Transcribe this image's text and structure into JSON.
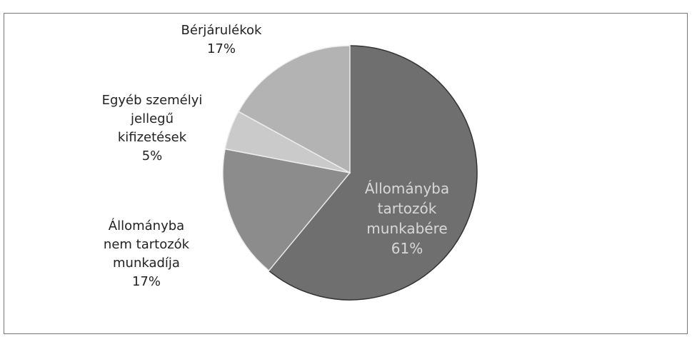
{
  "chart_data": {
    "type": "pie",
    "categories": [
      "Állományba\ntartozók\nmunkabére",
      "Állományba\nnem tartozók\nmunkadíja",
      "Egyéb személyi\njellegű\nkifizetések",
      "Bérjárulékok"
    ],
    "values": [
      61,
      17,
      5,
      17
    ],
    "value_labels": [
      "61%",
      "17%",
      "5%",
      "17%"
    ],
    "colors": [
      "#6f6f6f",
      "#8c8c8c",
      "#cacaca",
      "#b3b3b3"
    ]
  }
}
